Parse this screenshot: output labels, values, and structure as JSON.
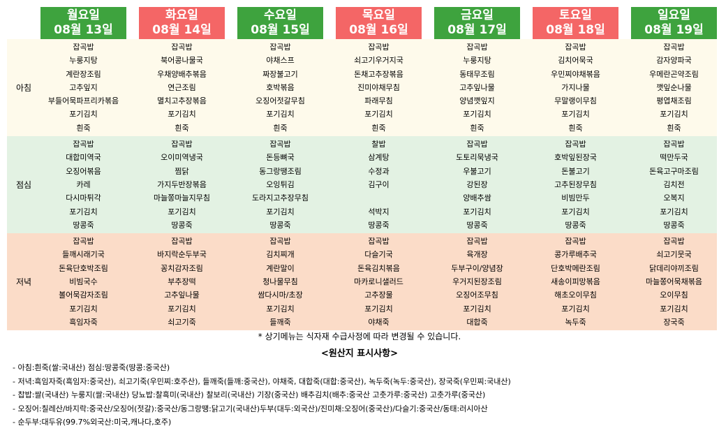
{
  "days": [
    {
      "label": "월요일",
      "date": "08월 13일",
      "color": "green"
    },
    {
      "label": "화요일",
      "date": "08월 14일",
      "color": "red"
    },
    {
      "label": "수요일",
      "date": "08월 15일",
      "color": "green"
    },
    {
      "label": "목요일",
      "date": "08월 16일",
      "color": "red"
    },
    {
      "label": "금요일",
      "date": "08월 17일",
      "color": "green"
    },
    {
      "label": "토요일",
      "date": "08월 18일",
      "color": "red"
    },
    {
      "label": "일요일",
      "date": "08월 19일",
      "color": "green"
    }
  ],
  "meals": [
    {
      "label": "아침",
      "key": "breakfast",
      "menus": [
        [
          "잡곡밥",
          "누룽지탕",
          "계란장조림",
          "고추잎지",
          "부들어묵파프리카볶음",
          "포기김치",
          "흰죽"
        ],
        [
          "잡곡밥",
          "북어콩나물국",
          "우채양배추볶음",
          "연근조림",
          "멸치고추장볶음",
          "포기김치",
          "흰죽"
        ],
        [
          "잡곡밥",
          "야채스프",
          "짜장불고기",
          "호박볶음",
          "오징어젓갈무침",
          "포기김치",
          "흰죽"
        ],
        [
          "잡곡밥",
          "쇠고기우거지국",
          "돈채고추장볶음",
          "진미야채무침",
          "파래무침",
          "포기김치",
          "흰죽"
        ],
        [
          "잡곡밥",
          "누룽지탕",
          "동태무조림",
          "고추잎나물",
          "양념깻잎지",
          "포기김치",
          "흰죽"
        ],
        [
          "잡곡밥",
          "김치어묵국",
          "우민찌야채볶음",
          "가지나물",
          "무말랭이무침",
          "포기김치",
          "흰죽"
        ],
        [
          "잡곡밥",
          "감자양파국",
          "우메란곤약조림",
          "깻잎순나물",
          "평엽채조림",
          "포기김치",
          "흰죽"
        ]
      ]
    },
    {
      "label": "점심",
      "key": "lunch",
      "menus": [
        [
          "잡곡밥",
          "대합미역국",
          "오징어볶음",
          "카레",
          "다시마튀각",
          "포기김치",
          "땅콩죽"
        ],
        [
          "잡곡밥",
          "오이미역냉국",
          "찜닭",
          "가지두반장볶음",
          "마늘쫑마늘지무침",
          "포기김치",
          "땅콩죽"
        ],
        [
          "잡곡밥",
          "돈등뼈국",
          "동그랑땡조림",
          "오잉튀김",
          "도라지고추장무침",
          "포기김치",
          "땅콩죽"
        ],
        [
          "찰밥",
          "삼계탕",
          "수정과",
          "김구이",
          "",
          "석박지",
          "땅콩죽"
        ],
        [
          "잡곡밥",
          "도토리묵냉국",
          "우불고기",
          "강된장",
          "양배추쌈",
          "포기김치",
          "땅콩죽"
        ],
        [
          "잡곡밥",
          "호박잎된장국",
          "돈불고기",
          "고추된장무침",
          "비빔만두",
          "포기김치",
          "땅콩죽"
        ],
        [
          "잡곡밥",
          "떡만두국",
          "돈육고구마조림",
          "김치전",
          "오복지",
          "포기김치",
          "땅콩죽"
        ]
      ]
    },
    {
      "label": "저녁",
      "key": "dinner",
      "menus": [
        [
          "잡곡밥",
          "들깨시래기국",
          "돈육단호박조림",
          "비빔국수",
          "볼어묵감자조림",
          "포기김치",
          "흑임자죽"
        ],
        [
          "잡곡밥",
          "바지락순두부국",
          "꽁치감자조림",
          "부추장떡",
          "고추잎나물",
          "포기김치",
          "쇠고기죽"
        ],
        [
          "잡곡밥",
          "김치찌개",
          "계란말이",
          "청나물무침",
          "쌈다시마/초장",
          "포기김치",
          "들깨죽"
        ],
        [
          "잡곡밥",
          "다슬기국",
          "돈육김치볶음",
          "마카로니샐러드",
          "고추장물",
          "포기김치",
          "야채죽"
        ],
        [
          "잡곡밥",
          "육개장",
          "두부구이/양념장",
          "우거지된장조림",
          "오징어조무침",
          "포기김치",
          "대합죽"
        ],
        [
          "잡곡밥",
          "콩가루배추국",
          "단호박메란조림",
          "새송이피망볶음",
          "해초오이무침",
          "포기김치",
          "녹두죽"
        ],
        [
          "잡곡밥",
          "쇠고기뭇국",
          "닭데리야끼조림",
          "마늘쫑어묵채볶음",
          "오이무침",
          "포기김치",
          "장국죽"
        ]
      ]
    }
  ],
  "note": "* 상기메뉴는 식자재 수급사정에 따라 변경될 수 있습니다.",
  "origin_title": "<원산지 표시사항>",
  "origin_lines": [
    "- 아침:흰죽(쌀:국내산)  점심:땅콩죽(땅콩:중국산)",
    "- 저녁:흑임자죽(흑임자:중국산),  쇠고기죽(우민찌:호주산),  들깨죽(들깨:중국산),  야채죽,  대합죽(대합:중국산),  녹두죽(녹두:중국산),  장국죽(우민찌:국내산)",
    "- 찹밥:쌀(국내산)  누룽지(쌀:국내산)  당뇨밥:찰흑미(국내산)  찰보리(국내산)  기장(중국산)  배추김치(배추:중국산  고춧가루:중국산)  고춧가루(중국산)",
    "- 오징어:칠레산/바지락:중국산/오징어(젓갈):중국산/동그랑땡:닭고기(국내산)두부(대두:외국산)/진미채:오징어(중국산)/다슬기:중국산/동태:러시아산",
    "- 순두부:대두유(99.7%외국산:미국,캐나다,호주)"
  ],
  "colors": {
    "green": "#3ea33e",
    "red": "#f46666",
    "breakfast_bg": "#fefaeb",
    "lunch_bg": "#e3f2e3",
    "dinner_bg": "#fbdcc8"
  }
}
